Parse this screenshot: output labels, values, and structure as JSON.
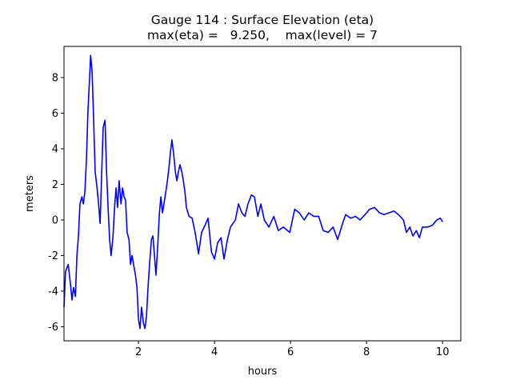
{
  "chart_data": {
    "type": "line",
    "title": "Gauge 114 : Surface Elevation (eta)",
    "subtitle": "max(eta) =   9.250,    max(level) = 7",
    "x_label": "hours",
    "y_label": "meters",
    "xlim": [
      0.04,
      10.48
    ],
    "ylim": [
      -6.79,
      9.75
    ],
    "xticks": [
      2,
      4,
      6,
      8,
      10
    ],
    "yticks": [
      -6,
      -4,
      -2,
      0,
      2,
      4,
      6,
      8
    ],
    "grid": false,
    "x": [
      0.04,
      0.08,
      0.15,
      0.21,
      0.25,
      0.29,
      0.34,
      0.38,
      0.42,
      0.46,
      0.51,
      0.55,
      0.59,
      0.63,
      0.67,
      0.72,
      0.74,
      0.78,
      0.82,
      0.86,
      0.91,
      0.95,
      0.99,
      1.03,
      1.07,
      1.12,
      1.16,
      1.2,
      1.24,
      1.28,
      1.33,
      1.37,
      1.41,
      1.45,
      1.49,
      1.54,
      1.58,
      1.62,
      1.66,
      1.7,
      1.75,
      1.79,
      1.83,
      1.87,
      1.92,
      1.96,
      2.0,
      2.04,
      2.08,
      2.13,
      2.17,
      2.21,
      2.25,
      2.29,
      2.34,
      2.38,
      2.42,
      2.46,
      2.51,
      2.55,
      2.59,
      2.63,
      2.67,
      2.72,
      2.76,
      2.8,
      2.84,
      2.88,
      2.93,
      2.97,
      3.01,
      3.05,
      3.09,
      3.14,
      3.18,
      3.22,
      3.26,
      3.33,
      3.41,
      3.49,
      3.58,
      3.66,
      3.75,
      3.83,
      3.92,
      4.0,
      4.08,
      4.17,
      4.25,
      4.34,
      4.42,
      4.55,
      4.63,
      4.72,
      4.8,
      4.88,
      4.97,
      5.05,
      5.14,
      5.22,
      5.31,
      5.43,
      5.56,
      5.68,
      5.81,
      5.98,
      6.11,
      6.23,
      6.36,
      6.48,
      6.61,
      6.74,
      6.86,
      6.99,
      7.12,
      7.24,
      7.37,
      7.45,
      7.58,
      7.71,
      7.83,
      7.96,
      8.08,
      8.21,
      8.34,
      8.46,
      8.59,
      8.72,
      8.84,
      8.97,
      9.05,
      9.14,
      9.22,
      9.31,
      9.39,
      9.47,
      9.6,
      9.73,
      9.85,
      9.94,
      10.0
    ],
    "series": [
      {
        "color": "#0000ff",
        "values": [
          -4.9,
          -2.9,
          -2.5,
          -3.6,
          -4.5,
          -3.8,
          -4.3,
          -2.0,
          -0.9,
          0.9,
          1.3,
          0.9,
          1.6,
          3.4,
          6.1,
          8.3,
          9.25,
          8.3,
          5.6,
          2.7,
          1.8,
          0.9,
          -0.2,
          2.5,
          5.2,
          5.6,
          2.7,
          0.7,
          -1.1,
          -2.0,
          -0.9,
          0.7,
          1.8,
          0.7,
          2.2,
          0.9,
          1.8,
          1.3,
          1.1,
          -0.7,
          -1.1,
          -2.5,
          -2.0,
          -2.5,
          -3.1,
          -3.8,
          -5.6,
          -6.1,
          -4.9,
          -5.8,
          -6.1,
          -5.4,
          -3.8,
          -2.5,
          -1.1,
          -0.9,
          -2.0,
          -3.1,
          -1.3,
          0.4,
          1.3,
          0.4,
          0.9,
          1.6,
          2.2,
          2.9,
          3.8,
          4.5,
          3.6,
          2.7,
          2.2,
          2.7,
          3.1,
          2.7,
          2.2,
          1.6,
          0.7,
          0.2,
          0.1,
          -0.7,
          -1.9,
          -0.7,
          -0.3,
          0.1,
          -1.8,
          -2.2,
          -1.3,
          -1.0,
          -2.2,
          -1.1,
          -0.4,
          0,
          0.9,
          0.4,
          0.2,
          0.9,
          1.4,
          1.3,
          0.2,
          0.9,
          0,
          -0.4,
          0.2,
          -0.6,
          -0.4,
          -0.7,
          0.6,
          0.4,
          0,
          0.4,
          0.2,
          0.2,
          -0.6,
          -0.7,
          -0.4,
          -1.1,
          -0.2,
          0.3,
          0.1,
          0.2,
          0,
          0.3,
          0.6,
          0.7,
          0.4,
          0.3,
          0.4,
          0.5,
          0.3,
          0,
          -0.7,
          -0.4,
          -0.9,
          -0.6,
          -1.0,
          -0.4,
          -0.4,
          -0.3,
          0,
          0.1,
          -0.1
        ]
      }
    ]
  }
}
